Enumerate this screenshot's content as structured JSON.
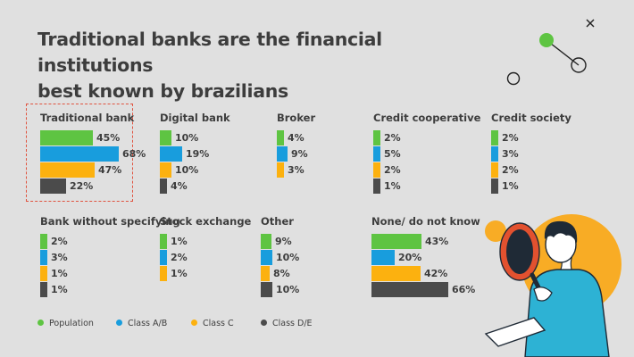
{
  "title_lines": [
    "Traditional banks are the financial institutions",
    "best known by brazilians"
  ],
  "colors": {
    "population": "#5ec442",
    "class_ab": "#189ddd",
    "class_c": "#fcb10f",
    "class_de": "#4b4b4b",
    "highlight_border": "#e0533f",
    "illustration_orange": "#f8ac25",
    "illustration_teal": "#2db2d4"
  },
  "chart_data": {
    "type": "bar",
    "orientation": "horizontal",
    "value_unit": "%",
    "title": "Traditional banks are the financial institutions best known by brazilians",
    "series": [
      {
        "name": "Population",
        "color": "#5ec442"
      },
      {
        "name": "Class A/B",
        "color": "#189ddd"
      },
      {
        "name": "Class C",
        "color": "#fcb10f"
      },
      {
        "name": "Class D/E",
        "color": "#4b4b4b"
      }
    ],
    "panels": [
      {
        "label": "Traditional bank",
        "values": [
          45,
          68,
          47,
          22
        ],
        "labels": [
          "45%",
          "68%",
          "47%",
          "22%"
        ],
        "highlighted": true
      },
      {
        "label": "Digital bank",
        "values": [
          10,
          19,
          10,
          4
        ],
        "labels": [
          "10%",
          "19%",
          "10%",
          "4%"
        ]
      },
      {
        "label": "Broker",
        "values": [
          4,
          9,
          3
        ],
        "labels": [
          "4%",
          "9%",
          "3%"
        ]
      },
      {
        "label": "Credit cooperative",
        "values": [
          2,
          5,
          2,
          1
        ],
        "labels": [
          "2%",
          "5%",
          "2%",
          "1%"
        ]
      },
      {
        "label": "Credit society",
        "values": [
          2,
          3,
          2,
          1
        ],
        "labels": [
          "2%",
          "3%",
          "2%",
          "1%"
        ]
      },
      {
        "label": "Bank without specifying",
        "values": [
          2,
          3,
          1,
          1
        ],
        "labels": [
          "2%",
          "3%",
          "1%",
          "1%"
        ]
      },
      {
        "label": "Stock exchange",
        "values": [
          1,
          2,
          1
        ],
        "labels": [
          "1%",
          "2%",
          "1%"
        ]
      },
      {
        "label": "Other",
        "values": [
          9,
          10,
          8,
          10
        ],
        "labels": [
          "9%",
          "10%",
          "8%",
          "10%"
        ]
      },
      {
        "label": "None/ do not know",
        "values": [
          43,
          20,
          42,
          66
        ],
        "labels": [
          "43%",
          "20%",
          "42%",
          "66%"
        ]
      }
    ],
    "legend": [
      "Population",
      "Class A/B",
      "Class C",
      "Class D/E"
    ],
    "legend_position": "bottom-left"
  }
}
